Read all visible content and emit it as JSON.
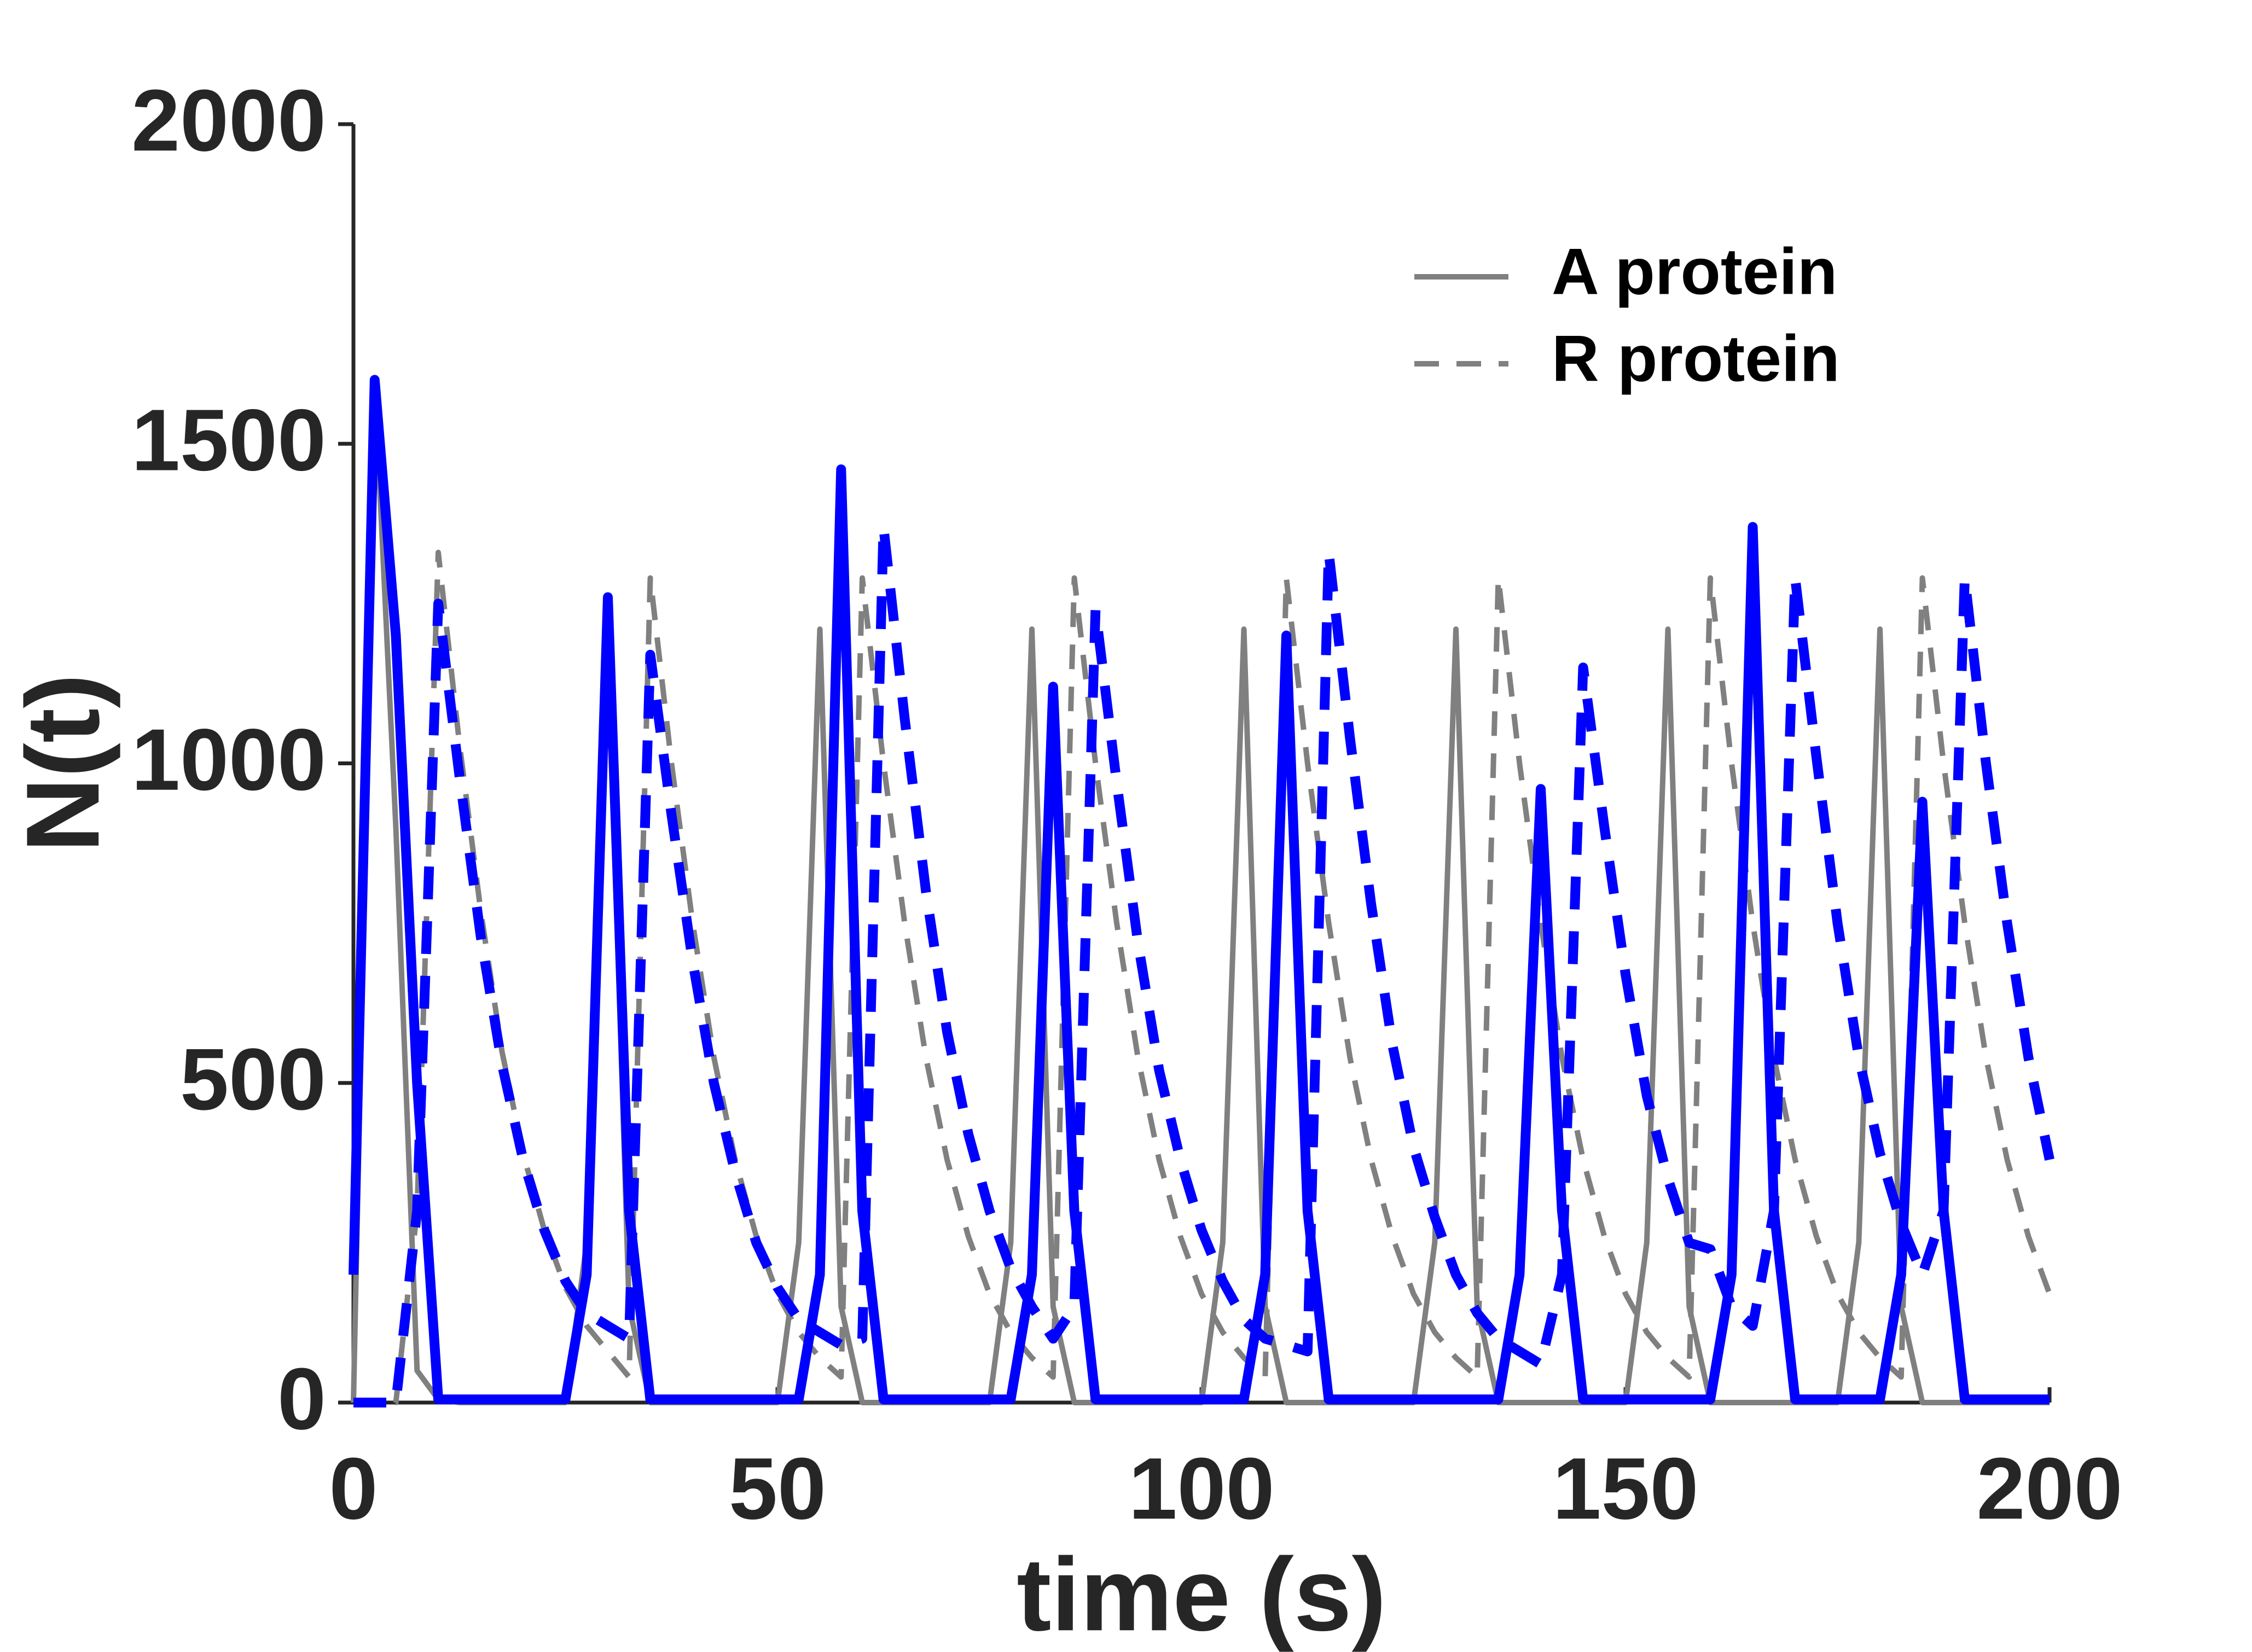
{
  "chart_data": {
    "type": "line",
    "xlabel": "time (s)",
    "ylabel": "N(t)",
    "x": [
      0,
      2.5,
      5,
      7.5,
      10,
      12.5,
      15,
      17.5,
      20,
      22.5,
      25,
      27.5,
      30,
      32.5,
      35,
      37.5,
      40,
      42.5,
      45,
      47.5,
      50,
      52.5,
      55,
      57.5,
      60,
      62.5,
      65,
      67.5,
      70,
      72.5,
      75,
      77.5,
      80,
      82.5,
      85,
      87.5,
      90,
      92.5,
      95,
      97.5,
      100,
      102.5,
      105,
      107.5,
      110,
      112.5,
      115,
      117.5,
      120,
      122.5,
      125,
      127.5,
      130,
      132.5,
      135,
      137.5,
      140,
      142.5,
      145,
      147.5,
      150,
      152.5,
      155,
      157.5,
      160,
      162.5,
      165,
      167.5,
      170,
      172.5,
      175,
      177.5,
      180,
      182.5,
      185,
      187.5,
      190,
      192.5,
      195,
      197.5,
      200
    ],
    "series": [
      {
        "name": "A protein",
        "color": "#808080",
        "dashed": false,
        "values": [
          0,
          1600,
          900,
          50,
          5,
          0,
          0,
          0,
          0,
          0,
          0,
          250,
          1210,
          150,
          0,
          0,
          0,
          0,
          0,
          0,
          0,
          250,
          1210,
          150,
          0,
          0,
          0,
          0,
          0,
          0,
          0,
          250,
          1210,
          150,
          0,
          0,
          0,
          0,
          0,
          0,
          0,
          250,
          1210,
          150,
          0,
          0,
          0,
          0,
          0,
          0,
          0,
          250,
          1210,
          150,
          0,
          0,
          0,
          0,
          0,
          0,
          0,
          250,
          1210,
          150,
          0,
          0,
          0,
          0,
          0,
          0,
          0,
          250,
          1210,
          150,
          0,
          0,
          0,
          0,
          0,
          0,
          0
        ]
      },
      {
        "name": "R protein",
        "color": "#808080",
        "dashed": true,
        "values": [
          0,
          0,
          0,
          300,
          1330,
          1030,
          770,
          550,
          390,
          270,
          180,
          120,
          80,
          40,
          1290,
          1000,
          750,
          540,
          380,
          260,
          170,
          110,
          70,
          40,
          1290,
          1000,
          750,
          540,
          380,
          260,
          170,
          110,
          70,
          40,
          1290,
          1000,
          750,
          540,
          380,
          260,
          170,
          110,
          70,
          40,
          1290,
          1000,
          750,
          540,
          380,
          260,
          170,
          110,
          70,
          40,
          1290,
          1000,
          750,
          540,
          380,
          260,
          170,
          110,
          70,
          40,
          1290,
          1000,
          750,
          540,
          380,
          260,
          170,
          110,
          70,
          40,
          1290,
          1000,
          750,
          540,
          380,
          260,
          170
        ]
      },
      {
        "color": "#0000ff",
        "dashed": false,
        "values": [
          200,
          1600,
          1200,
          500,
          5,
          5,
          5,
          5,
          5,
          5,
          5,
          200,
          1260,
          300,
          5,
          5,
          5,
          5,
          5,
          5,
          5,
          5,
          200,
          1460,
          300,
          5,
          5,
          5,
          5,
          5,
          5,
          5,
          200,
          1120,
          300,
          5,
          5,
          5,
          5,
          5,
          5,
          5,
          5,
          200,
          1200,
          300,
          5,
          5,
          5,
          5,
          5,
          5,
          5,
          5,
          5,
          200,
          960,
          300,
          5,
          5,
          5,
          5,
          5,
          5,
          5,
          200,
          1370,
          300,
          5,
          5,
          5,
          5,
          5,
          200,
          940,
          300,
          5,
          5,
          5,
          5,
          5
        ]
      },
      {
        "color": "#0000ff",
        "dashed": true,
        "values": [
          0,
          0,
          0,
          300,
          1250,
          980,
          730,
          530,
          380,
          270,
          190,
          140,
          120,
          100,
          1170,
          920,
          690,
          500,
          360,
          250,
          180,
          130,
          110,
          90,
          100,
          1370,
          1070,
          800,
          580,
          420,
          300,
          210,
          150,
          100,
          150,
          1240,
          970,
          720,
          520,
          380,
          270,
          190,
          130,
          100,
          90,
          80,
          1330,
          1040,
          780,
          560,
          400,
          290,
          200,
          140,
          100,
          80,
          60,
          200,
          1150,
          900,
          670,
          480,
          350,
          250,
          240,
          150,
          120,
          300,
          1290,
          1010,
          750,
          540,
          390,
          280,
          200,
          300,
          1290,
          1000,
          750,
          540,
          380
        ]
      }
    ],
    "xlim": [
      0,
      200
    ],
    "xticks": [
      0,
      50,
      100,
      150,
      200
    ],
    "ylim": [
      0,
      2000
    ],
    "yticks": [
      0,
      500,
      1000,
      1500,
      2000
    ],
    "grid": false,
    "legend": "upper right"
  }
}
